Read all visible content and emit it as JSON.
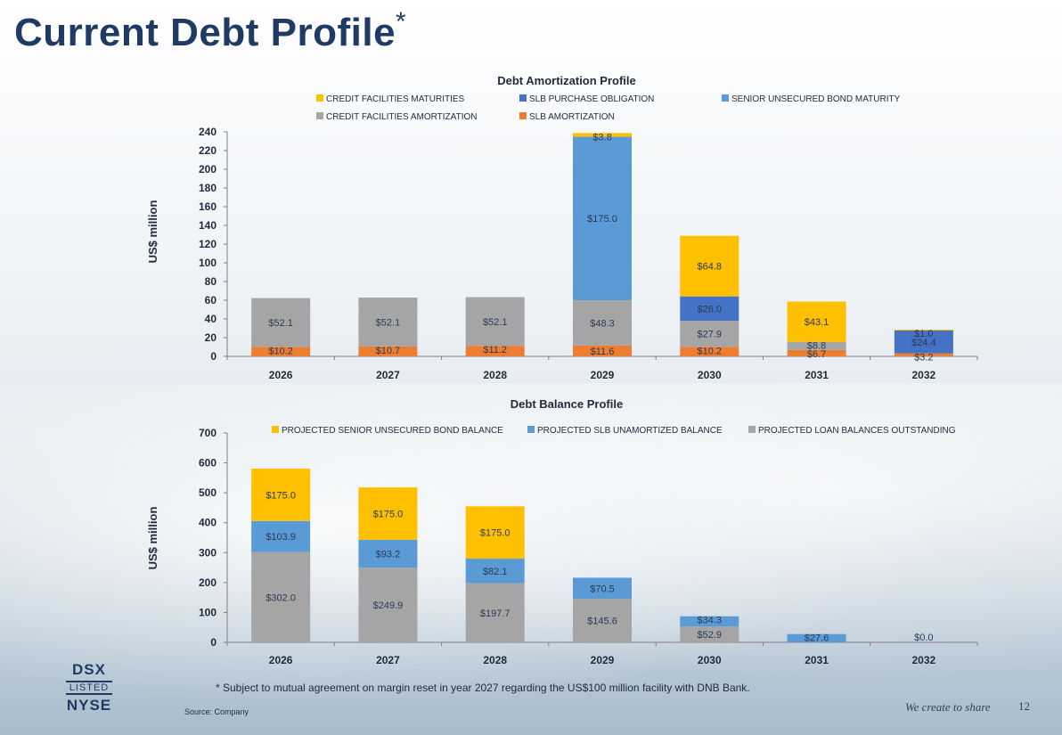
{
  "header": {
    "title": "Current Debt Profile",
    "asterisk": "*"
  },
  "colors": {
    "yellow": "#ffc000",
    "dark_blue": "#4472c4",
    "light_blue": "#5b9bd5",
    "gray": "#a5a5a5",
    "orange": "#ed7d31"
  },
  "chart_data": [
    {
      "type": "bar",
      "stacked": true,
      "title": "Debt Amortization Profile",
      "ylabel": "US$ million",
      "ylim": [
        0,
        240
      ],
      "yticks": [
        0,
        20,
        40,
        60,
        80,
        100,
        120,
        140,
        160,
        180,
        200,
        220,
        240
      ],
      "categories": [
        "2026",
        "2027",
        "2028",
        "2029",
        "2030",
        "2031",
        "2032"
      ],
      "legend_position": "top",
      "series": [
        {
          "name": "SLB AMORTIZATION",
          "color": "#ed7d31",
          "values": [
            10.2,
            10.7,
            11.2,
            11.6,
            10.2,
            6.7,
            3.2
          ],
          "labels": [
            "$10.2",
            "$10.7",
            "$11.2",
            "$11.6",
            "$10.2",
            "$6.7",
            "$3.2"
          ]
        },
        {
          "name": "CREDIT FACILITIES AMORTIZATION",
          "color": "#a5a5a5",
          "values": [
            52.1,
            52.1,
            52.1,
            48.3,
            27.9,
            8.8,
            0
          ],
          "labels": [
            "$52.1",
            "$52.1",
            "$52.1",
            "$48.3",
            "$27.9",
            "$8.8",
            ""
          ]
        },
        {
          "name": "SLB PURCHASE OBLIGATION",
          "color": "#4472c4",
          "values": [
            0,
            0,
            0,
            0,
            26.0,
            0,
            24.4
          ],
          "labels": [
            "",
            "",
            "",
            "",
            "$26.0",
            "",
            "$24.4"
          ]
        },
        {
          "name": "SENIOR UNSECURED BOND MATURITY",
          "color": "#5b9bd5",
          "values": [
            0,
            0,
            0,
            175.0,
            0,
            0,
            0
          ],
          "labels": [
            "",
            "",
            "",
            "$175.0",
            "",
            "",
            ""
          ]
        },
        {
          "name": "CREDIT FACILITIES MATURITIES",
          "color": "#ffc000",
          "values": [
            0,
            0,
            0,
            3.8,
            64.8,
            43.1,
            1.0
          ],
          "labels": [
            "",
            "",
            "",
            "$3.8",
            "$64.8",
            "$43.1",
            "$1.0"
          ]
        }
      ],
      "legend_order": [
        "CREDIT FACILITIES MATURITIES",
        "SLB PURCHASE OBLIGATION",
        "SENIOR UNSECURED BOND MATURITY",
        "CREDIT FACILITIES AMORTIZATION",
        "SLB AMORTIZATION"
      ]
    },
    {
      "type": "bar",
      "stacked": true,
      "title": "Debt Balance Profile",
      "ylabel": "US$ million",
      "ylim": [
        0,
        700
      ],
      "yticks": [
        0,
        100,
        200,
        300,
        400,
        500,
        600,
        700
      ],
      "categories": [
        "2026",
        "2027",
        "2028",
        "2029",
        "2030",
        "2031",
        "2032"
      ],
      "legend_position": "top",
      "series": [
        {
          "name": "PROJECTED LOAN BALANCES OUTSTANDING",
          "color": "#a5a5a5",
          "values": [
            302.0,
            249.9,
            197.7,
            145.6,
            52.9,
            0,
            0
          ],
          "labels": [
            "$302.0",
            "$249.9",
            "$197.7",
            "$145.6",
            "$52.9",
            "",
            "$0.0"
          ]
        },
        {
          "name": "PROJECTED SLB UNAMORTIZED BALANCE",
          "color": "#5b9bd5",
          "values": [
            103.9,
            93.2,
            82.1,
            70.5,
            34.3,
            27.6,
            0
          ],
          "labels": [
            "$103.9",
            "$93.2",
            "$82.1",
            "$70.5",
            "$34.3",
            "$27.6",
            ""
          ]
        },
        {
          "name": "PROJECTED SENIOR UNSECURED BOND BALANCE",
          "color": "#ffc000",
          "values": [
            175.0,
            175.0,
            175.0,
            0,
            0,
            0,
            0
          ],
          "labels": [
            "$175.0",
            "$175.0",
            "$175.0",
            "",
            "",
            "",
            ""
          ]
        }
      ],
      "legend_order": [
        "PROJECTED SENIOR UNSECURED BOND BALANCE",
        "PROJECTED SLB UNAMORTIZED BALANCE",
        "PROJECTED LOAN BALANCES OUTSTANDING"
      ]
    }
  ],
  "logo": {
    "line1": "DSX",
    "line2": "LISTED",
    "line3": "NYSE"
  },
  "footer": {
    "footnote": "*  Subject to mutual agreement on margin reset in year 2027 regarding the US$100 million facility with DNB Bank.",
    "source": "Source: Company",
    "tagline": "We create to share",
    "page_number": "12"
  }
}
